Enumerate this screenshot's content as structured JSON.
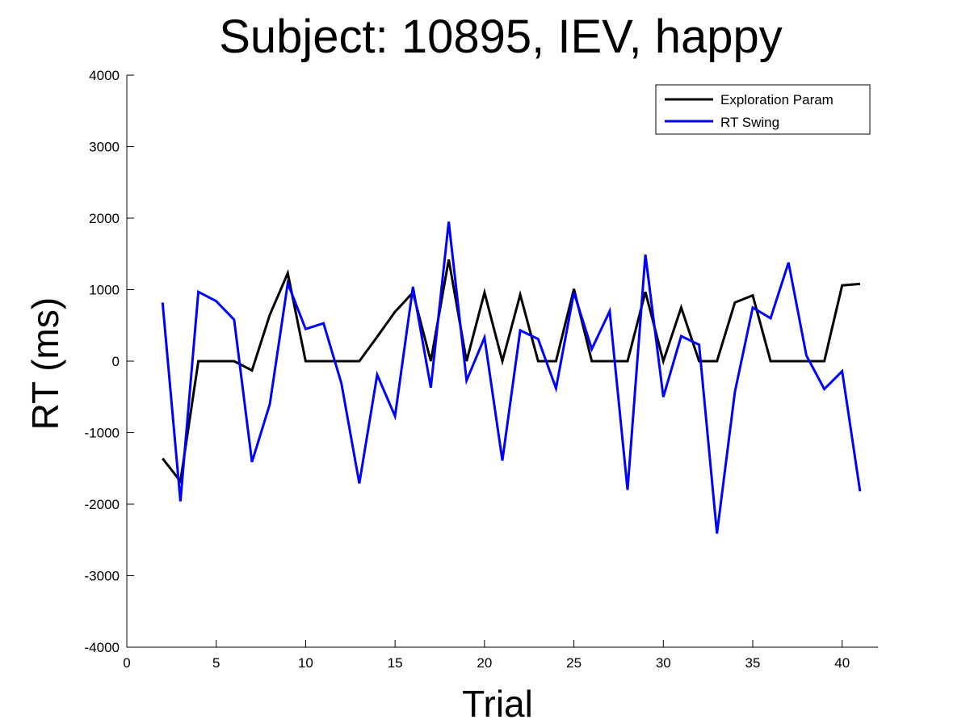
{
  "chart_data": {
    "type": "line",
    "title": "Subject: 10895, IEV, happy",
    "xlabel": "Trial",
    "ylabel": "RT (ms)",
    "xlim": [
      0,
      42
    ],
    "ylim": [
      -4000,
      4000
    ],
    "xticks": [
      0,
      5,
      10,
      15,
      20,
      25,
      30,
      35,
      40
    ],
    "yticks": [
      -4000,
      -3000,
      -2000,
      -1000,
      0,
      1000,
      2000,
      3000,
      4000
    ],
    "grid": false,
    "legend_position": "top-right",
    "x": [
      2,
      3,
      4,
      5,
      6,
      7,
      8,
      9,
      10,
      11,
      12,
      13,
      14,
      15,
      16,
      17,
      18,
      19,
      20,
      21,
      22,
      23,
      24,
      25,
      26,
      27,
      28,
      29,
      30,
      31,
      32,
      33,
      34,
      35,
      36,
      37,
      38,
      39,
      40,
      41
    ],
    "series": [
      {
        "name": "Exploration Param",
        "color": "#000000",
        "values": [
          -1360,
          -1680,
          0,
          0,
          0,
          -130,
          650,
          1230,
          0,
          0,
          0,
          0,
          340,
          690,
          960,
          0,
          1420,
          0,
          960,
          0,
          930,
          0,
          0,
          1010,
          0,
          0,
          0,
          970,
          0,
          750,
          0,
          0,
          820,
          920,
          0,
          0,
          0,
          0,
          1060,
          1080
        ]
      },
      {
        "name": "RT Swing",
        "color": "#0000ff",
        "values": [
          820,
          -1960,
          970,
          840,
          580,
          -1410,
          -600,
          1090,
          450,
          530,
          -310,
          -1710,
          -190,
          -770,
          1040,
          -370,
          1950,
          -270,
          330,
          -1390,
          430,
          310,
          -380,
          960,
          170,
          700,
          -1800,
          1490,
          -500,
          350,
          230,
          -2410,
          -430,
          750,
          600,
          1380,
          80,
          -390,
          -140,
          -1820
        ]
      }
    ]
  }
}
